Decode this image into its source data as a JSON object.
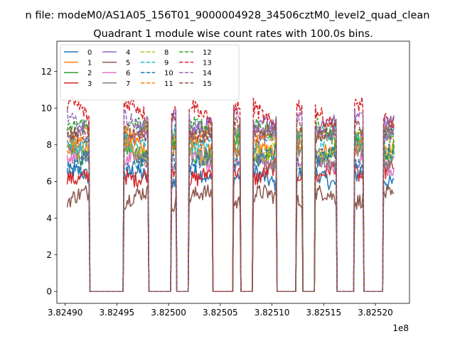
{
  "figure_title": "n file: modeM0/AS1A05_156T01_9000004928_34506cztM0_level2_quad_clean",
  "chart_data": {
    "type": "line",
    "title": "Quadrant 1 module wise count rates with 100.0s bins.",
    "xlabel": "",
    "ylabel": "",
    "x_offset_text": "1e8",
    "xlim": [
      382489200,
      382523300
    ],
    "ylim": [
      -0.65,
      13.65
    ],
    "x_tick_values": [
      382490000,
      382495000,
      382500000,
      382505000,
      382510000,
      382515000,
      382520000
    ],
    "x_tick_labels": [
      "3.82490",
      "3.82495",
      "3.82500",
      "3.82505",
      "3.82510",
      "3.82515",
      "3.82520"
    ],
    "y_tick_values": [
      0,
      2,
      4,
      6,
      8,
      10,
      12
    ],
    "y_tick_labels": [
      "0",
      "2",
      "4",
      "6",
      "8",
      "10",
      "12"
    ],
    "grid": false,
    "legend_position": "top-left",
    "active_intervals": [
      [
        382490200,
        382492300
      ],
      [
        382495700,
        382498000
      ],
      [
        382500300,
        382500700
      ],
      [
        382502000,
        382504200
      ],
      [
        382506300,
        382506900
      ],
      [
        382508200,
        382510400
      ],
      [
        382512400,
        382512900
      ],
      [
        382514200,
        382516200
      ],
      [
        382518000,
        382518800
      ],
      [
        382520800,
        382521900
      ]
    ],
    "series": [
      {
        "name": "0",
        "style": "solid",
        "color": "#1f77b4",
        "level": 6.2
      },
      {
        "name": "1",
        "style": "solid",
        "color": "#ff7f0e",
        "level": 8.1
      },
      {
        "name": "2",
        "style": "solid",
        "color": "#2ca02c",
        "level": 7.7
      },
      {
        "name": "3",
        "style": "solid",
        "color": "#d62728",
        "level": 6.5
      },
      {
        "name": "4",
        "style": "solid",
        "color": "#9467bd",
        "level": 8.8
      },
      {
        "name": "5",
        "style": "solid",
        "color": "#8c564b",
        "level": 5.1
      },
      {
        "name": "6",
        "style": "solid",
        "color": "#e377c2",
        "level": 7.0
      },
      {
        "name": "7",
        "style": "solid",
        "color": "#7f7f7f",
        "level": 7.4
      },
      {
        "name": "8",
        "style": "dashed",
        "color": "#bcbd22",
        "level": 7.9
      },
      {
        "name": "9",
        "style": "dashed",
        "color": "#17becf",
        "level": 8.4
      },
      {
        "name": "10",
        "style": "dashed",
        "color": "#1f77b4",
        "level": 7.2
      },
      {
        "name": "11",
        "style": "dashed",
        "color": "#ff7f0e",
        "level": 8.2
      },
      {
        "name": "12",
        "style": "dashed",
        "color": "#2ca02c",
        "level": 8.6
      },
      {
        "name": "13",
        "style": "dashed",
        "color": "#d62728",
        "level": 9.7
      },
      {
        "name": "14",
        "style": "dashed",
        "color": "#9467bd",
        "level": 9.1
      },
      {
        "name": "15",
        "style": "dashed",
        "color": "#8c564b",
        "level": 8.9
      }
    ]
  }
}
